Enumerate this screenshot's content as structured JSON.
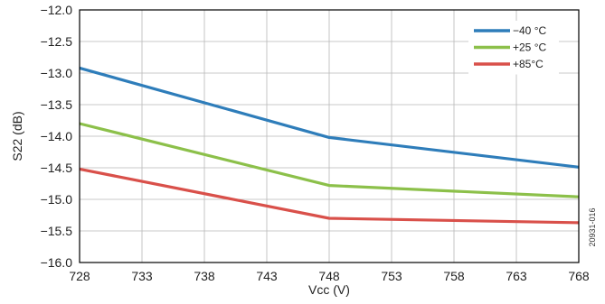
{
  "chart_data": {
    "type": "line",
    "xlabel": "Vcc (V)",
    "ylabel": "S22 (dB)",
    "x": [
      728,
      748,
      768
    ],
    "xticks": [
      728,
      733,
      738,
      743,
      748,
      753,
      758,
      763,
      768
    ],
    "xlim": [
      728,
      768
    ],
    "yticks": [
      -12.0,
      -12.5,
      -13.0,
      -13.5,
      -14.0,
      -14.5,
      -15.0,
      -15.5,
      -16.0
    ],
    "ylim": [
      -16.0,
      -12.0
    ],
    "grid": true,
    "legend_position": "top-right",
    "series": [
      {
        "name": "−40 °C",
        "color": "#2e7dba",
        "values": [
          -12.92,
          -14.02,
          -14.49
        ]
      },
      {
        "name": "+25 °C",
        "color": "#8cc04a",
        "values": [
          -13.8,
          -14.78,
          -14.96
        ]
      },
      {
        "name": "+85°C",
        "color": "#d9504a",
        "values": [
          -14.52,
          -15.3,
          -15.37
        ]
      }
    ],
    "side_note": "20931-016"
  }
}
